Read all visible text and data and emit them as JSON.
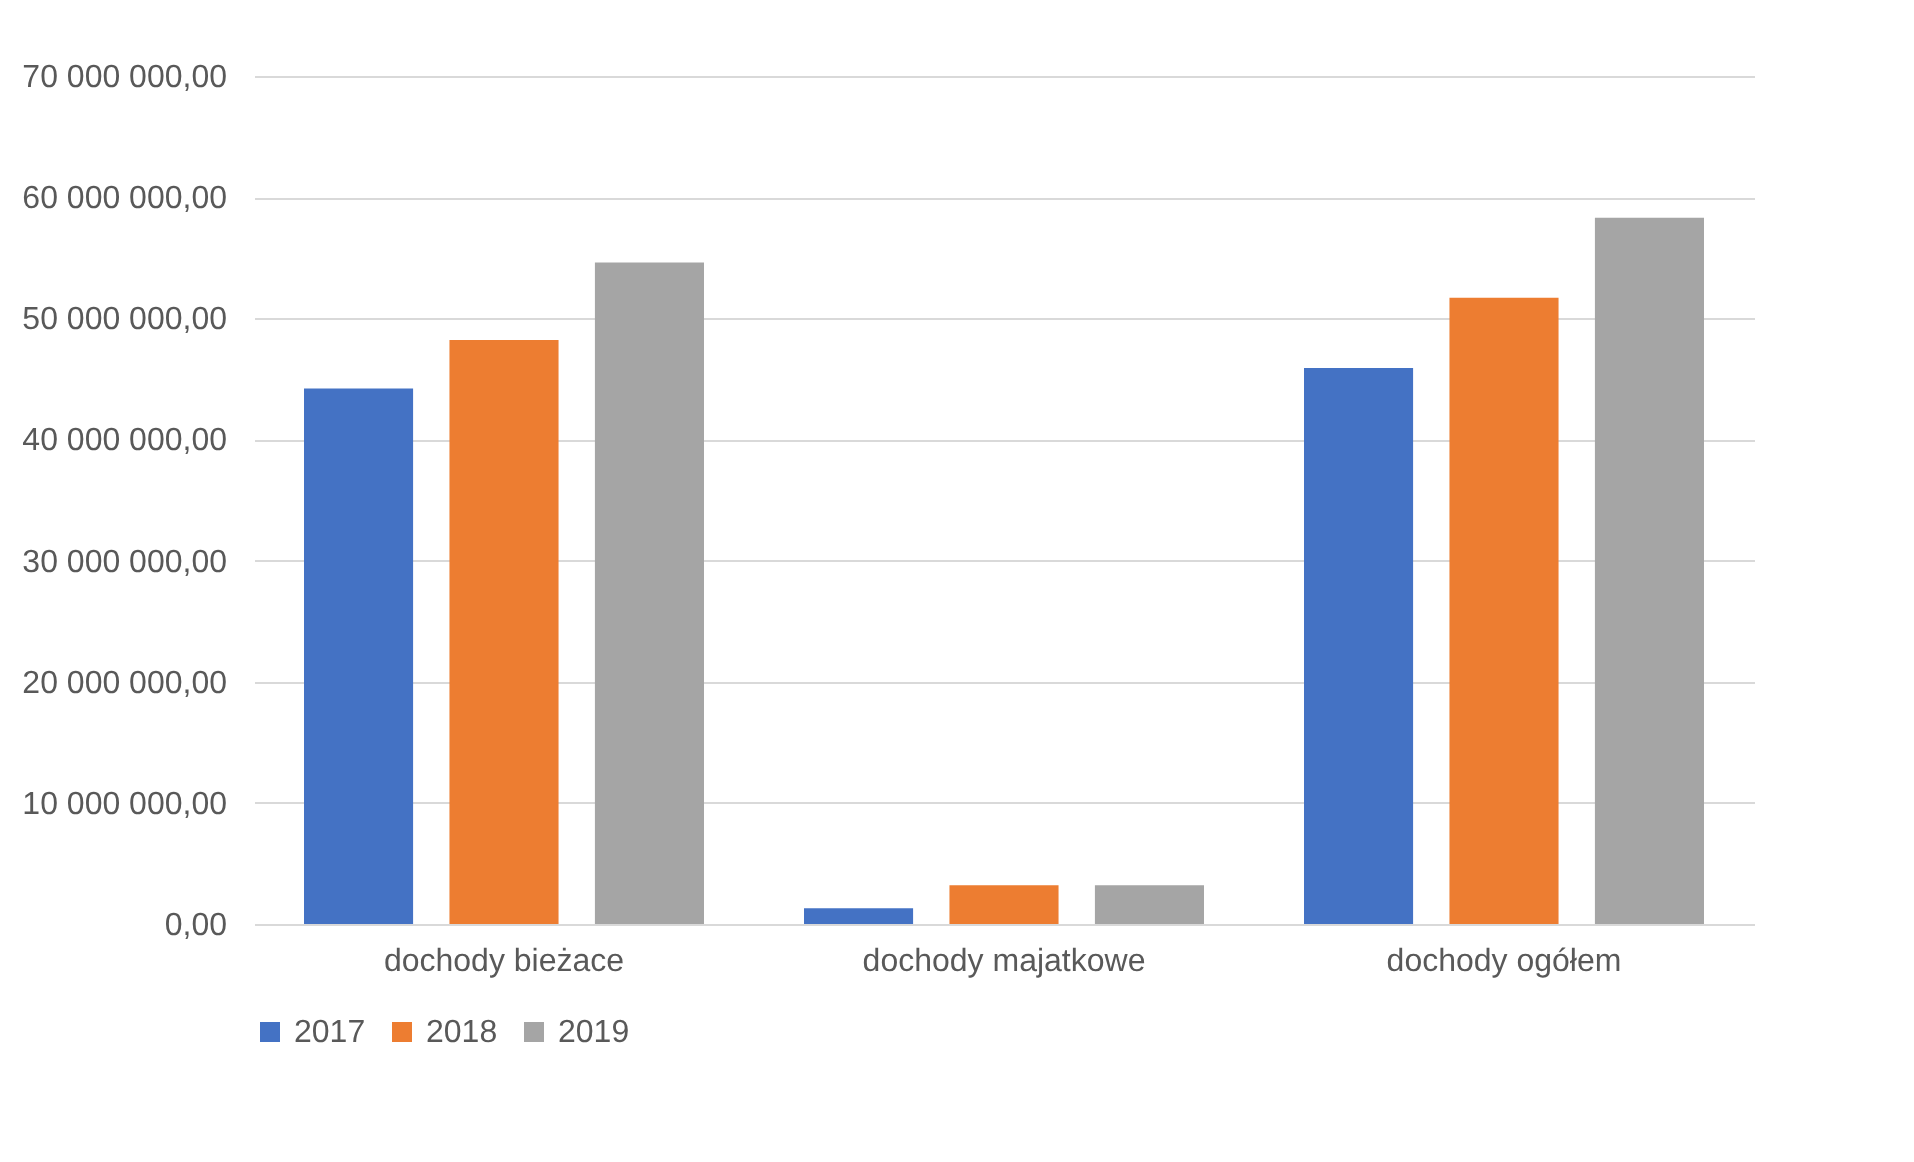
{
  "chart_data": {
    "type": "bar",
    "categories": [
      "dochody bieżace",
      "dochody majatkowe",
      "dochody ogółem"
    ],
    "series": [
      {
        "name": "2017",
        "color": "#4472c4",
        "values": [
          44200000,
          1300000,
          45900000
        ]
      },
      {
        "name": "2018",
        "color": "#ed7d31",
        "values": [
          48200000,
          3200000,
          51700000
        ]
      },
      {
        "name": "2019",
        "color": "#a5a5a5",
        "values": [
          54600000,
          3200000,
          58300000
        ]
      }
    ],
    "ylim": [
      0,
      70000000
    ],
    "yticks": [
      {
        "value": 0,
        "label": "0,00"
      },
      {
        "value": 10000000,
        "label": "10 000 000,00"
      },
      {
        "value": 20000000,
        "label": "20 000 000,00"
      },
      {
        "value": 30000000,
        "label": "30 000 000,00"
      },
      {
        "value": 40000000,
        "label": "40 000 000,00"
      },
      {
        "value": 50000000,
        "label": "50 000 000,00"
      },
      {
        "value": 60000000,
        "label": "60 000 000,00"
      },
      {
        "value": 70000000,
        "label": "70 000 000,00"
      }
    ],
    "grid": "y",
    "legend": "bottom"
  }
}
